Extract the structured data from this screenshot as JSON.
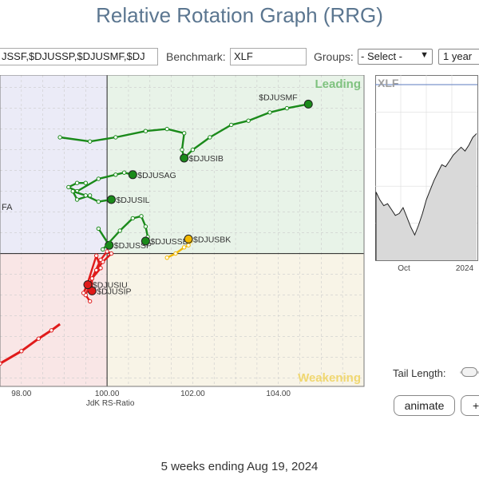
{
  "page": {
    "title": "Relative Rotation Graph (RRG)",
    "footer": "5 weeks ending Aug 19, 2024"
  },
  "toolbar": {
    "symbols_value": "JSSF,$DJUSSP,$DJUSMF,$DJ",
    "benchmark_label": "Benchmark:",
    "benchmark_value": "XLF",
    "groups_label": "Groups:",
    "groups_value": "- Select -",
    "period_value": "1 year"
  },
  "controls": {
    "tail_length_label": "Tail Length:",
    "animate_label": "animate",
    "plus_label": "+"
  },
  "colors": {
    "leading_bg": "#e8f3e8",
    "improving_bg": "#ebebf7",
    "lagging_bg": "#f9e6e6",
    "weakening_bg": "#f8f4e7",
    "green": "#1a8a1a",
    "red": "#e01a1a",
    "yellow": "#f2b800",
    "grid": "#cccccc"
  },
  "chart_data": [
    {
      "type": "scatter",
      "subtype": "relative-rotation-graph",
      "xlabel": "JdK RS-Ratio",
      "ylabel": "",
      "xlim": [
        97.5,
        106.0
      ],
      "ylim": [
        96.8,
        104.3
      ],
      "x_ticks": [
        "98.00",
        "100.00",
        "102.00",
        "104.00"
      ],
      "x_tick_values": [
        98,
        100,
        102,
        104
      ],
      "center": [
        100,
        100
      ],
      "quadrant_labels": {
        "leading": "Leading",
        "weakening": "Weakening"
      },
      "grid": true,
      "series": [
        {
          "name": "$DJUSMF",
          "color": "green",
          "points": [
            [
              101.8,
              102.3
            ],
            [
              102.0,
              102.5
            ],
            [
              102.4,
              102.8
            ],
            [
              102.9,
              103.1
            ],
            [
              103.3,
              103.2
            ],
            [
              103.8,
              103.4
            ],
            [
              104.2,
              103.5
            ],
            [
              104.7,
              103.6
            ]
          ]
        },
        {
          "name": "$DJUSIB",
          "color": "green",
          "points": [
            [
              98.9,
              102.8
            ],
            [
              99.6,
              102.7
            ],
            [
              100.2,
              102.8
            ],
            [
              100.9,
              102.95
            ],
            [
              101.4,
              103.0
            ],
            [
              101.8,
              102.9
            ],
            [
              101.75,
              102.5
            ],
            [
              101.8,
              102.3
            ]
          ]
        },
        {
          "name": "$DJUSAG",
          "color": "green",
          "points": [
            [
              99.5,
              101.7
            ],
            [
              99.3,
              101.7
            ],
            [
              99.1,
              101.6
            ],
            [
              99.3,
              101.5
            ],
            [
              99.8,
              101.8
            ],
            [
              100.2,
              101.9
            ],
            [
              100.4,
              101.95
            ],
            [
              100.6,
              101.9
            ]
          ]
        },
        {
          "name": "$DJUSIL",
          "color": "green",
          "points": [
            [
              99.6,
              101.4
            ],
            [
              99.3,
              101.3
            ],
            [
              99.2,
              101.5
            ],
            [
              99.5,
              101.4
            ],
            [
              99.8,
              101.25
            ],
            [
              100.1,
              101.3
            ]
          ]
        },
        {
          "name": "$DJUSSP",
          "color": "green",
          "points": [
            [
              99.8,
              100.6
            ],
            [
              100.05,
              100.2
            ]
          ]
        },
        {
          "name": "$DJUSSB",
          "color": "green",
          "points": [
            [
              99.9,
              100.1
            ],
            [
              100.3,
              100.55
            ],
            [
              100.6,
              100.85
            ],
            [
              100.8,
              100.9
            ],
            [
              100.9,
              100.65
            ],
            [
              100.95,
              100.4
            ],
            [
              100.9,
              100.3
            ]
          ]
        },
        {
          "name": "$DJUSBK",
          "color": "yellow",
          "points": [
            [
              101.4,
              99.9
            ],
            [
              101.6,
              100.0
            ],
            [
              101.8,
              100.15
            ],
            [
              101.9,
              100.2
            ],
            [
              101.95,
              100.3
            ],
            [
              101.9,
              100.35
            ]
          ]
        },
        {
          "name": "$DJUSIP",
          "color": "red",
          "points": [
            [
              99.75,
              99.6
            ],
            [
              99.9,
              99.8
            ],
            [
              100.1,
              100.0
            ],
            [
              100.0,
              100.05
            ],
            [
              99.85,
              99.85
            ],
            [
              99.65,
              99.4
            ],
            [
              99.65,
              99.1
            ]
          ]
        },
        {
          "name": "$DJUSIU",
          "color": "red",
          "points": [
            [
              99.6,
              98.85
            ],
            [
              99.5,
              99.0
            ],
            [
              99.65,
              99.4
            ],
            [
              99.85,
              99.65
            ],
            [
              99.75,
              99.95
            ],
            [
              99.55,
              99.3
            ],
            [
              99.45,
              99.05
            ],
            [
              99.55,
              99.25
            ]
          ]
        },
        {
          "name": "",
          "color": "red",
          "points": [
            [
              97.5,
              97.35
            ],
            [
              98.0,
              97.65
            ],
            [
              98.4,
              97.95
            ],
            [
              98.7,
              98.15
            ],
            [
              98.9,
              98.3
            ]
          ]
        }
      ],
      "offscreen_label_fragment": "FA"
    },
    {
      "type": "area",
      "title": "XLF",
      "x_ticks": [
        "Oct",
        "2024"
      ],
      "values": [
        34.0,
        33.6,
        33.3,
        33.4,
        33.1,
        32.8,
        32.9,
        33.2,
        32.7,
        32.2,
        31.8,
        32.3,
        32.9,
        33.6,
        34.1,
        34.6,
        35.0,
        35.4,
        35.3,
        35.6,
        35.9,
        36.1,
        36.3,
        36.1,
        36.4,
        36.8,
        37.0
      ]
    }
  ]
}
